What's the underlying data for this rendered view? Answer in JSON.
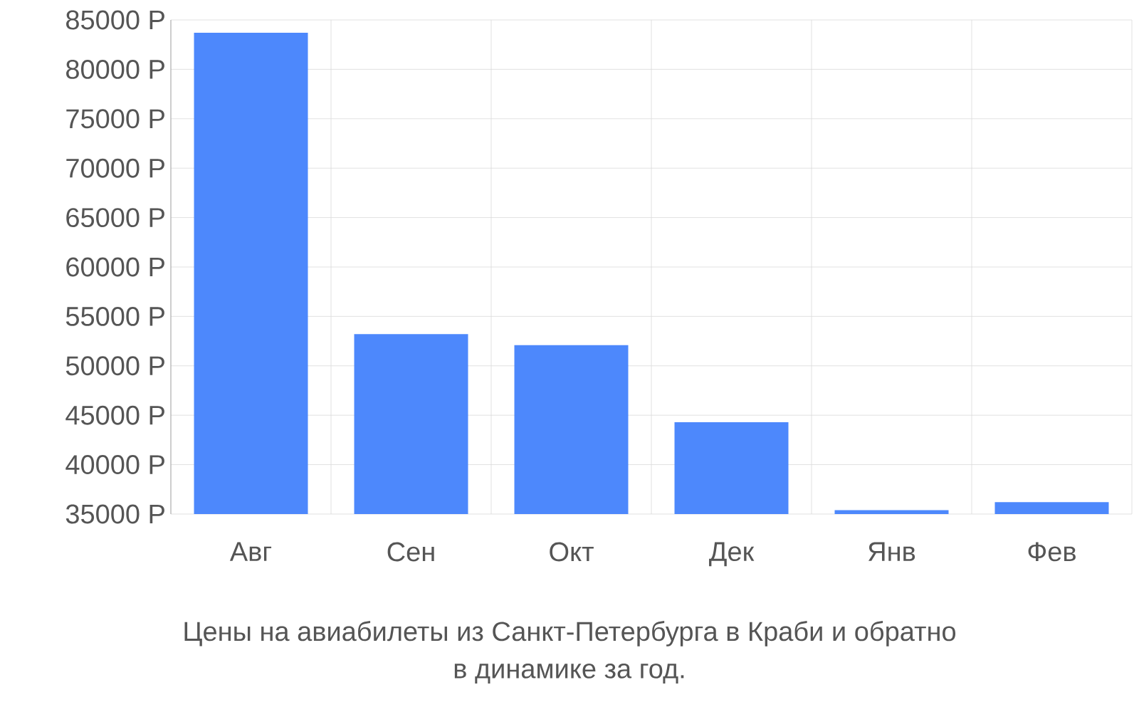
{
  "chart_data": {
    "type": "bar",
    "categories": [
      "Авг",
      "Сен",
      "Окт",
      "Дек",
      "Янв",
      "Фев"
    ],
    "values": [
      83700,
      53200,
      52100,
      44300,
      35400,
      36200
    ],
    "color": "#4d88fc",
    "ylim": [
      35000,
      85000
    ],
    "yticks": [
      {
        "value": 35000,
        "label": "35000 Р"
      },
      {
        "value": 40000,
        "label": "40000 Р"
      },
      {
        "value": 45000,
        "label": "45000 Р"
      },
      {
        "value": 50000,
        "label": "50000 Р"
      },
      {
        "value": 55000,
        "label": "55000 Р"
      },
      {
        "value": 60000,
        "label": "60000 Р"
      },
      {
        "value": 65000,
        "label": "65000 Р"
      },
      {
        "value": 70000,
        "label": "70000 Р"
      },
      {
        "value": 75000,
        "label": "75000 Р"
      },
      {
        "value": 80000,
        "label": "80000 Р"
      },
      {
        "value": 85000,
        "label": "85000 Р"
      }
    ],
    "grid": true,
    "annotations": [
      "Цены на авиабилеты из Санкт-Петербурга в Краби и обратно",
      "в динамике за год."
    ]
  }
}
